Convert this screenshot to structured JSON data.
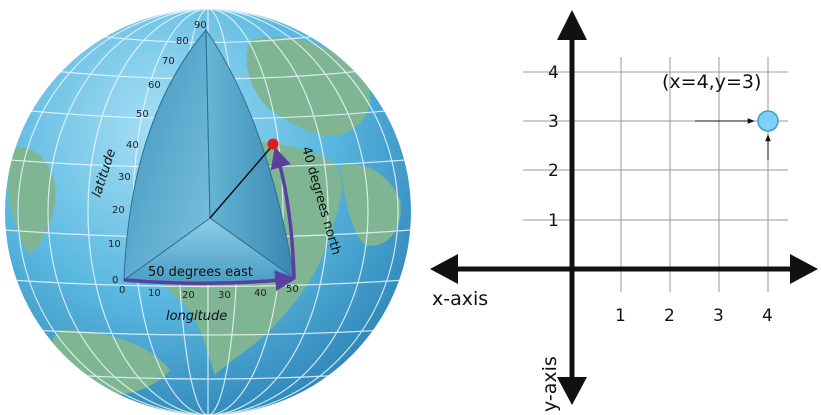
{
  "globe": {
    "latitude_label": "latitude",
    "longitude_label": "longitude",
    "east_label": "50 degrees east",
    "north_label": "40 degrees north",
    "latitude_ticks": [
      "0",
      "10",
      "20",
      "30",
      "40",
      "50",
      "60",
      "70",
      "80",
      "90"
    ],
    "longitude_ticks": [
      "0",
      "10",
      "20",
      "30",
      "40",
      "50"
    ],
    "colors": {
      "ocean": "#5ab8e0",
      "land": "#7fb592",
      "wedge": "#4aa3c8",
      "arrow": "#5b3f9e",
      "point": "#e01b1b"
    }
  },
  "graph": {
    "x_axis_label": "x-axis",
    "y_axis_label": "y-axis",
    "x_ticks": [
      "1",
      "2",
      "3",
      "4"
    ],
    "y_ticks": [
      "1",
      "2",
      "3",
      "4"
    ],
    "point_label": "(x=4,y=3)",
    "point": {
      "x": 4,
      "y": 3
    },
    "colors": {
      "grid": "#9a9a9a",
      "axis": "#111111",
      "point": "#7fd0f5"
    }
  }
}
